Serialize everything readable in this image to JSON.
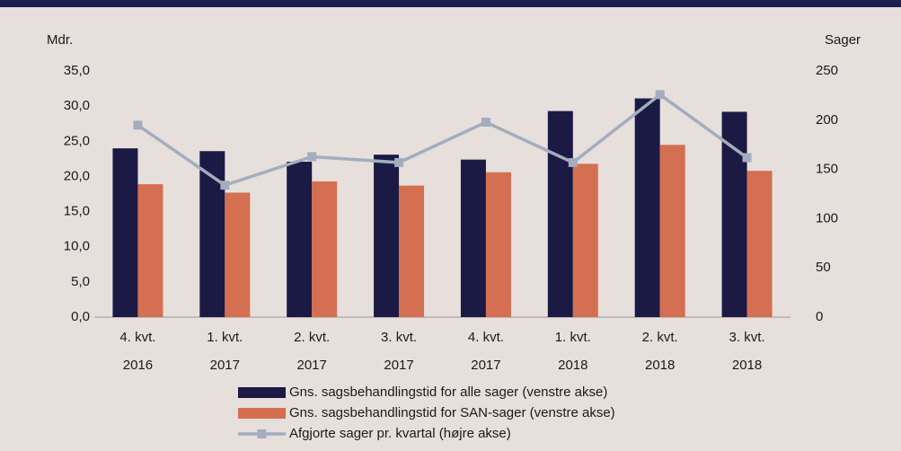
{
  "chart_data": {
    "type": "bar_line",
    "ylabel": "Mdr.",
    "y2label": "Sager",
    "categories": [
      [
        "4. kvt.",
        "2016"
      ],
      [
        "1. kvt.",
        "2017"
      ],
      [
        "2. kvt.",
        "2017"
      ],
      [
        "3. kvt.",
        "2017"
      ],
      [
        "4. kvt.",
        "2017"
      ],
      [
        "1. kvt.",
        "2018"
      ],
      [
        "2. kvt.",
        "2018"
      ],
      [
        "3. kvt.",
        "2018"
      ]
    ],
    "series": [
      {
        "name": "Gns. sagsbehandlingstid for alle sager (venstre akse)",
        "color": "#1b1a45",
        "kind": "bar",
        "values": [
          24.0,
          23.6,
          22.1,
          23.1,
          22.4,
          29.3,
          31.1,
          29.2
        ]
      },
      {
        "name": "Gns. sagsbehandlingstid for SAN-sager (venstre akse)",
        "color": "#d46f52",
        "kind": "bar",
        "values": [
          18.9,
          17.7,
          19.3,
          18.7,
          20.6,
          21.8,
          24.5,
          20.8
        ]
      },
      {
        "name": "Afgjorte sager pr. kvartal (højre akse)",
        "color": "#a3adbd",
        "kind": "line",
        "axis": "y2",
        "values": [
          195,
          134,
          163,
          157,
          198,
          157,
          226,
          162
        ]
      }
    ],
    "ylim": [
      0,
      35
    ],
    "yticks": [
      {
        "value": 0,
        "label": "0,0"
      },
      {
        "value": 5,
        "label": "5,0"
      },
      {
        "value": 10,
        "label": "10,0"
      },
      {
        "value": 15,
        "label": "15,0"
      },
      {
        "value": 20,
        "label": "20,0"
      },
      {
        "value": 25,
        "label": "25,0"
      },
      {
        "value": 30,
        "label": "30,0"
      },
      {
        "value": 35,
        "label": "35,0"
      }
    ],
    "y2lim": [
      0,
      250
    ],
    "y2ticks": [
      0,
      50,
      100,
      150,
      200,
      250
    ],
    "grid": false
  }
}
